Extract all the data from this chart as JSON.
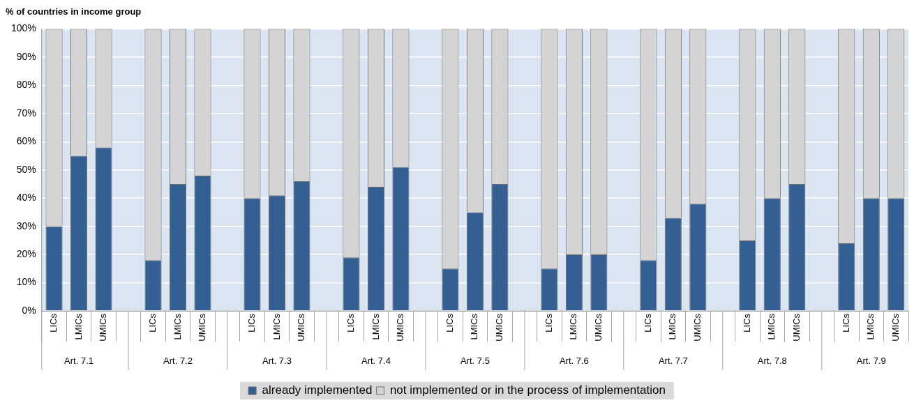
{
  "chart_data": {
    "type": "bar",
    "title": "% of countries in income group",
    "stacked": true,
    "categories": [
      "LICs",
      "LMICs",
      "UMICs",
      null,
      "LICs",
      "LMICs",
      "UMICs",
      null,
      "LICs",
      "LMICs",
      "UMICs",
      null,
      "LICs",
      "LMICs",
      "UMICs",
      null,
      "LICs",
      "LMICs",
      "UMICs",
      null,
      "LICs",
      "LMICs",
      "UMICs",
      null,
      "LICs",
      "LMICs",
      "UMICs",
      null,
      "LICs",
      "LMICs",
      "UMICs",
      null,
      "LICs",
      "LMICs",
      "UMICs"
    ],
    "series": [
      {
        "name": "already implemented",
        "color": "#335f93",
        "values": [
          30,
          55,
          58,
          null,
          18,
          45,
          48,
          null,
          40,
          41,
          46,
          null,
          19,
          44,
          51,
          null,
          15,
          35,
          45,
          null,
          15,
          20,
          20,
          null,
          18,
          33,
          38,
          null,
          25,
          40,
          45,
          null,
          24,
          40,
          40
        ]
      },
      {
        "name": "not implemented or in the process of implementation",
        "color": "#d4d4d4",
        "values": [
          70,
          45,
          42,
          null,
          82,
          55,
          52,
          null,
          60,
          59,
          54,
          null,
          81,
          56,
          49,
          null,
          85,
          65,
          55,
          null,
          85,
          80,
          80,
          null,
          82,
          67,
          62,
          null,
          75,
          60,
          55,
          null,
          76,
          60,
          60
        ]
      }
    ],
    "annotations": [
      "Art. 7.1",
      "Art. 7.2",
      "Art. 7.3",
      "Art. 7.4",
      "Art. 7.5",
      "Art. 7.6",
      "Art. 7.7",
      "Art. 7.8",
      "Art. 7.9"
    ],
    "ylim": [
      0,
      100
    ],
    "yticks": [
      {
        "value": 0,
        "label": "0%"
      },
      {
        "value": 10,
        "label": "10%"
      },
      {
        "value": 20,
        "label": "20%"
      },
      {
        "value": 30,
        "label": "30%"
      },
      {
        "value": 40,
        "label": "40%"
      },
      {
        "value": 50,
        "label": "50%"
      },
      {
        "value": 60,
        "label": "60%"
      },
      {
        "value": 70,
        "label": "70%"
      },
      {
        "value": 80,
        "label": "80%"
      },
      {
        "value": 90,
        "label": "90%"
      },
      {
        "value": 100,
        "label": "100%"
      }
    ],
    "grid": "y",
    "legend": "bottom"
  }
}
